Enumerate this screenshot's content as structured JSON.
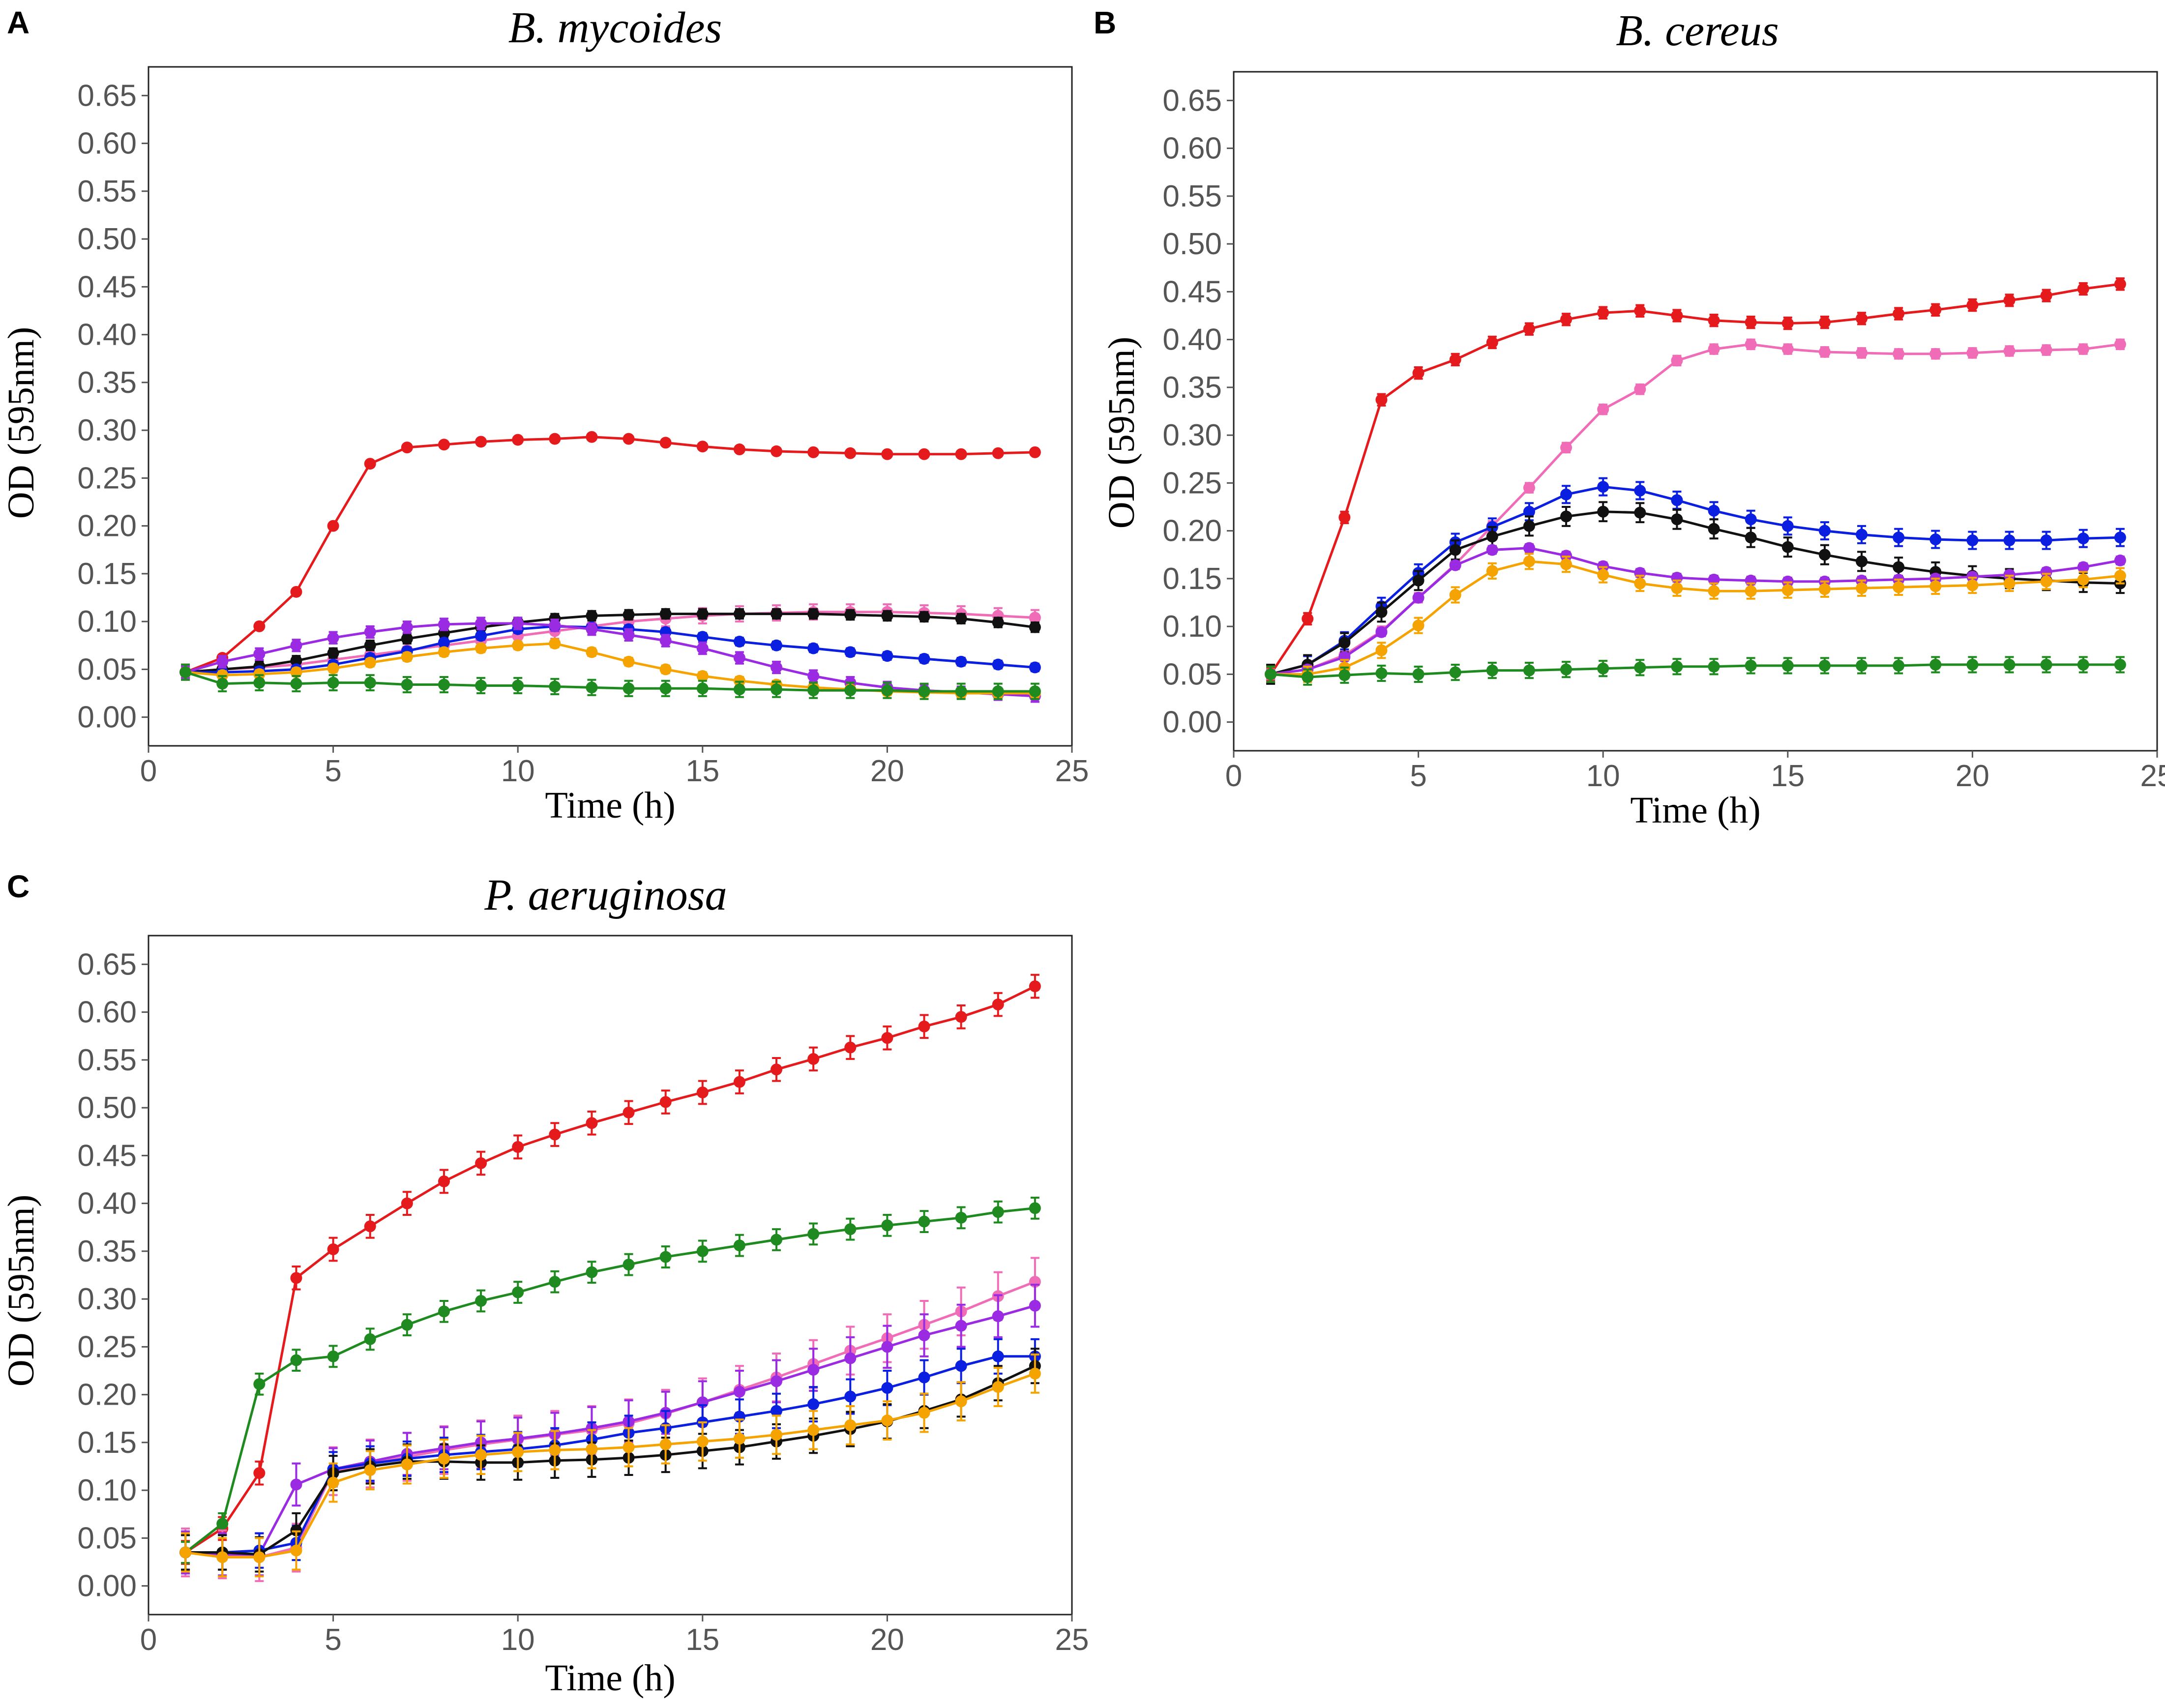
{
  "chart_data": [
    {
      "panel": "A",
      "type": "line",
      "title": "B. mycoides",
      "xlabel": "Time (h)",
      "ylabel": "OD (595nm)",
      "xlim": [
        0,
        25
      ],
      "ylim": [
        -0.03,
        0.68
      ],
      "xticks": [
        0,
        5,
        10,
        15,
        20,
        25
      ],
      "yticks": [
        0.0,
        0.05,
        0.1,
        0.15,
        0.2,
        0.25,
        0.3,
        0.35,
        0.4,
        0.45,
        0.5,
        0.55,
        0.6,
        0.65
      ],
      "x": [
        1,
        2,
        3,
        4,
        5,
        6,
        7,
        8,
        9,
        10,
        11,
        12,
        13,
        14,
        15,
        16,
        17,
        18,
        19,
        20,
        21,
        22,
        23,
        24
      ],
      "series": [
        {
          "name": "red",
          "color": "#e41a1c",
          "values": [
            0.047,
            0.062,
            0.095,
            0.131,
            0.2,
            0.265,
            0.282,
            0.285,
            0.288,
            0.29,
            0.291,
            0.293,
            0.291,
            0.287,
            0.283,
            0.28,
            0.278,
            0.277,
            0.276,
            0.275,
            0.275,
            0.275,
            0.276,
            0.277
          ],
          "err": 0.003
        },
        {
          "name": "pink",
          "color": "#f06cb6",
          "values": [
            0.047,
            0.05,
            0.052,
            0.055,
            0.06,
            0.065,
            0.07,
            0.075,
            0.08,
            0.085,
            0.09,
            0.095,
            0.1,
            0.103,
            0.106,
            0.108,
            0.109,
            0.11,
            0.11,
            0.11,
            0.109,
            0.108,
            0.106,
            0.104
          ],
          "err": 0.008
        },
        {
          "name": "black",
          "color": "#111111",
          "values": [
            0.047,
            0.05,
            0.053,
            0.059,
            0.067,
            0.075,
            0.082,
            0.088,
            0.094,
            0.099,
            0.103,
            0.106,
            0.107,
            0.108,
            0.108,
            0.108,
            0.108,
            0.108,
            0.107,
            0.106,
            0.105,
            0.103,
            0.099,
            0.094
          ],
          "err": 0.005
        },
        {
          "name": "blue",
          "color": "#0a1fe0",
          "values": [
            0.047,
            0.047,
            0.048,
            0.05,
            0.055,
            0.062,
            0.069,
            0.078,
            0.085,
            0.092,
            0.095,
            0.094,
            0.092,
            0.089,
            0.084,
            0.079,
            0.075,
            0.072,
            0.068,
            0.064,
            0.061,
            0.058,
            0.055,
            0.052
          ],
          "err": 0.004
        },
        {
          "name": "purple",
          "color": "#9a2be3",
          "values": [
            0.047,
            0.058,
            0.066,
            0.075,
            0.083,
            0.089,
            0.094,
            0.097,
            0.098,
            0.098,
            0.096,
            0.092,
            0.086,
            0.08,
            0.072,
            0.062,
            0.052,
            0.043,
            0.036,
            0.031,
            0.028,
            0.026,
            0.024,
            0.022
          ],
          "err": 0.006
        },
        {
          "name": "orange",
          "color": "#f5a300",
          "values": [
            0.047,
            0.044,
            0.045,
            0.047,
            0.051,
            0.057,
            0.063,
            0.068,
            0.072,
            0.075,
            0.077,
            0.068,
            0.058,
            0.05,
            0.043,
            0.038,
            0.034,
            0.031,
            0.029,
            0.027,
            0.026,
            0.025,
            0.025,
            0.025
          ],
          "err": 0.004
        },
        {
          "name": "green",
          "color": "#1f8a1f",
          "values": [
            0.047,
            0.035,
            0.036,
            0.035,
            0.036,
            0.036,
            0.034,
            0.034,
            0.033,
            0.033,
            0.032,
            0.031,
            0.03,
            0.03,
            0.03,
            0.029,
            0.029,
            0.028,
            0.028,
            0.028,
            0.027,
            0.027,
            0.027,
            0.027
          ],
          "err": 0.008
        }
      ]
    },
    {
      "panel": "B",
      "type": "line",
      "title": "B. cereus",
      "xlabel": "Time (h)",
      "ylabel": "OD (595nm)",
      "xlim": [
        0,
        25
      ],
      "ylim": [
        -0.03,
        0.68
      ],
      "xticks": [
        0,
        5,
        10,
        15,
        20,
        25
      ],
      "yticks": [
        0.0,
        0.05,
        0.1,
        0.15,
        0.2,
        0.25,
        0.3,
        0.35,
        0.4,
        0.45,
        0.5,
        0.55,
        0.6,
        0.65
      ],
      "x": [
        1,
        2,
        3,
        4,
        5,
        6,
        7,
        8,
        9,
        10,
        11,
        12,
        13,
        14,
        15,
        16,
        17,
        18,
        19,
        20,
        21,
        22,
        23,
        24
      ],
      "series": [
        {
          "name": "red",
          "color": "#e41a1c",
          "values": [
            0.05,
            0.108,
            0.214,
            0.337,
            0.365,
            0.379,
            0.397,
            0.411,
            0.421,
            0.428,
            0.43,
            0.425,
            0.42,
            0.418,
            0.417,
            0.418,
            0.422,
            0.427,
            0.431,
            0.436,
            0.441,
            0.446,
            0.453,
            0.458
          ],
          "err": 0.006
        },
        {
          "name": "pink",
          "color": "#f06cb6",
          "values": [
            0.05,
            0.055,
            0.07,
            0.095,
            0.13,
            0.165,
            0.205,
            0.245,
            0.287,
            0.327,
            0.348,
            0.378,
            0.39,
            0.395,
            0.39,
            0.387,
            0.386,
            0.385,
            0.385,
            0.386,
            0.388,
            0.389,
            0.39,
            0.395
          ],
          "err": 0.005
        },
        {
          "name": "blue",
          "color": "#0a1fe0",
          "values": [
            0.05,
            0.06,
            0.085,
            0.121,
            0.156,
            0.188,
            0.204,
            0.22,
            0.238,
            0.246,
            0.242,
            0.232,
            0.221,
            0.212,
            0.205,
            0.2,
            0.196,
            0.193,
            0.191,
            0.19,
            0.19,
            0.19,
            0.192,
            0.193
          ],
          "err": 0.009
        },
        {
          "name": "black",
          "color": "#111111",
          "values": [
            0.05,
            0.06,
            0.083,
            0.115,
            0.148,
            0.18,
            0.194,
            0.205,
            0.215,
            0.22,
            0.219,
            0.212,
            0.202,
            0.193,
            0.183,
            0.175,
            0.168,
            0.162,
            0.157,
            0.153,
            0.15,
            0.148,
            0.146,
            0.145
          ],
          "err": 0.01
        },
        {
          "name": "purple",
          "color": "#9a2be3",
          "values": [
            0.05,
            0.055,
            0.068,
            0.094,
            0.13,
            0.164,
            0.18,
            0.182,
            0.174,
            0.163,
            0.156,
            0.151,
            0.149,
            0.148,
            0.147,
            0.147,
            0.148,
            0.149,
            0.15,
            0.152,
            0.154,
            0.157,
            0.162,
            0.169
          ],
          "err": 0.004
        },
        {
          "name": "orange",
          "color": "#f5a300",
          "values": [
            0.05,
            0.05,
            0.057,
            0.075,
            0.101,
            0.133,
            0.158,
            0.168,
            0.165,
            0.154,
            0.145,
            0.14,
            0.137,
            0.137,
            0.138,
            0.139,
            0.14,
            0.141,
            0.142,
            0.143,
            0.145,
            0.147,
            0.149,
            0.153
          ],
          "err": 0.008
        },
        {
          "name": "green",
          "color": "#1f8a1f",
          "values": [
            0.05,
            0.047,
            0.049,
            0.051,
            0.05,
            0.052,
            0.054,
            0.054,
            0.055,
            0.056,
            0.057,
            0.058,
            0.058,
            0.059,
            0.059,
            0.059,
            0.059,
            0.059,
            0.06,
            0.06,
            0.06,
            0.06,
            0.06,
            0.06
          ],
          "err": 0.008
        }
      ]
    },
    {
      "panel": "C",
      "type": "line",
      "title": "P. aeruginosa",
      "xlabel": "Time (h)",
      "ylabel": "OD (595nm)",
      "xlim": [
        0,
        25
      ],
      "ylim": [
        -0.03,
        0.68
      ],
      "xticks": [
        0,
        5,
        10,
        15,
        20,
        25
      ],
      "yticks": [
        0.0,
        0.05,
        0.1,
        0.15,
        0.2,
        0.25,
        0.3,
        0.35,
        0.4,
        0.45,
        0.5,
        0.55,
        0.6,
        0.65
      ],
      "x": [
        1,
        2,
        3,
        4,
        5,
        6,
        7,
        8,
        9,
        10,
        11,
        12,
        13,
        14,
        15,
        16,
        17,
        18,
        19,
        20,
        21,
        22,
        23,
        24
      ],
      "series": [
        {
          "name": "red",
          "color": "#e41a1c",
          "values": [
            0.035,
            0.06,
            0.118,
            0.322,
            0.352,
            0.376,
            0.4,
            0.423,
            0.442,
            0.459,
            0.472,
            0.484,
            0.495,
            0.506,
            0.516,
            0.527,
            0.54,
            0.551,
            0.563,
            0.573,
            0.585,
            0.595,
            0.608,
            0.627
          ],
          "err": 0.012
        },
        {
          "name": "green",
          "color": "#1f8a1f",
          "values": [
            0.035,
            0.065,
            0.211,
            0.236,
            0.24,
            0.258,
            0.273,
            0.287,
            0.298,
            0.307,
            0.318,
            0.328,
            0.336,
            0.344,
            0.35,
            0.356,
            0.362,
            0.368,
            0.373,
            0.377,
            0.381,
            0.385,
            0.391,
            0.395
          ],
          "err": 0.011
        },
        {
          "name": "pink",
          "color": "#f06cb6",
          "values": [
            0.035,
            0.033,
            0.03,
            0.04,
            0.12,
            0.128,
            0.135,
            0.142,
            0.148,
            0.153,
            0.158,
            0.163,
            0.17,
            0.18,
            0.192,
            0.205,
            0.218,
            0.232,
            0.246,
            0.259,
            0.273,
            0.287,
            0.303,
            0.318
          ],
          "err": 0.025
        },
        {
          "name": "purple",
          "color": "#9a2be3",
          "values": [
            0.035,
            0.033,
            0.033,
            0.106,
            0.122,
            0.13,
            0.138,
            0.144,
            0.15,
            0.154,
            0.159,
            0.165,
            0.172,
            0.181,
            0.192,
            0.203,
            0.214,
            0.226,
            0.238,
            0.25,
            0.262,
            0.272,
            0.282,
            0.293
          ],
          "err": 0.022
        },
        {
          "name": "blue",
          "color": "#0a1fe0",
          "values": [
            0.035,
            0.035,
            0.037,
            0.045,
            0.122,
            0.128,
            0.133,
            0.137,
            0.14,
            0.143,
            0.147,
            0.153,
            0.16,
            0.165,
            0.171,
            0.177,
            0.183,
            0.19,
            0.198,
            0.207,
            0.218,
            0.23,
            0.24,
            0.24
          ],
          "err": 0.018
        },
        {
          "name": "black",
          "color": "#111111",
          "values": [
            0.035,
            0.035,
            0.033,
            0.058,
            0.118,
            0.125,
            0.13,
            0.13,
            0.129,
            0.129,
            0.131,
            0.132,
            0.134,
            0.137,
            0.141,
            0.145,
            0.151,
            0.157,
            0.164,
            0.172,
            0.183,
            0.195,
            0.212,
            0.23
          ],
          "err": 0.018
        },
        {
          "name": "orange",
          "color": "#f5a300",
          "values": [
            0.035,
            0.03,
            0.03,
            0.037,
            0.108,
            0.121,
            0.127,
            0.133,
            0.137,
            0.14,
            0.142,
            0.143,
            0.145,
            0.148,
            0.151,
            0.154,
            0.158,
            0.163,
            0.168,
            0.173,
            0.181,
            0.193,
            0.208,
            0.222
          ],
          "err": 0.02
        }
      ]
    }
  ]
}
